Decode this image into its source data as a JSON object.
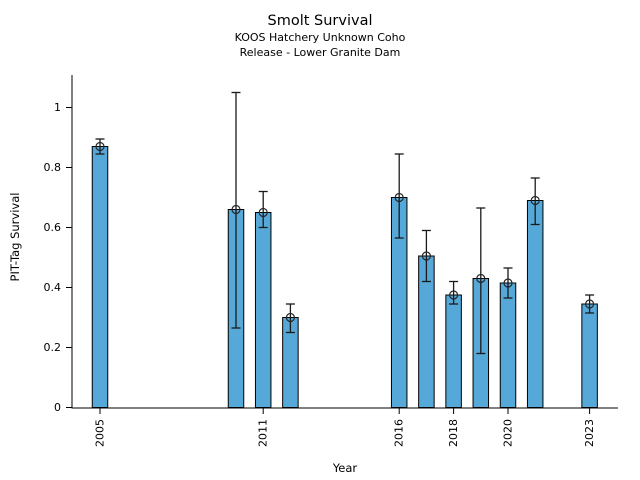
{
  "chart_data": {
    "type": "bar",
    "title": "Smolt Survival",
    "subtitle1": "KOOS Hatchery Unknown Coho",
    "subtitle2": "Release - Lower Granite Dam",
    "xlabel": "Year",
    "ylabel": "PIT-Tag Survival",
    "x": [
      2005,
      2010,
      2011,
      2012,
      2016,
      2017,
      2018,
      2019,
      2020,
      2021,
      2023
    ],
    "values": [
      0.87,
      0.66,
      0.65,
      0.3,
      0.7,
      0.505,
      0.375,
      0.43,
      0.415,
      0.69,
      0.345
    ],
    "err_low": [
      0.845,
      0.265,
      0.6,
      0.25,
      0.565,
      0.42,
      0.345,
      0.18,
      0.365,
      0.61,
      0.315
    ],
    "err_high": [
      0.895,
      1.05,
      0.72,
      0.345,
      0.845,
      0.59,
      0.42,
      0.665,
      0.465,
      0.765,
      0.375
    ],
    "xtick_years": [
      2005,
      2011,
      2016,
      2018,
      2020,
      2023
    ],
    "xtick_labels": [
      "2005",
      "2011",
      "2016",
      "2018",
      "2020",
      "2023"
    ],
    "yticks": [
      0,
      0.2,
      0.4,
      0.6,
      0.8,
      1
    ],
    "ytick_labels": [
      "0",
      "0.2",
      "0.4",
      "0.6",
      "0.8",
      "1"
    ],
    "xlim": [
      2004,
      2024
    ],
    "ylim": [
      0,
      1.11
    ],
    "grid": false,
    "legend": null,
    "marker": "open-circle",
    "bar_color": "#56A8D8",
    "bar_edge_color": "#000000",
    "error_color": "#1a1a1a",
    "marker_edge_color": "#262626"
  }
}
